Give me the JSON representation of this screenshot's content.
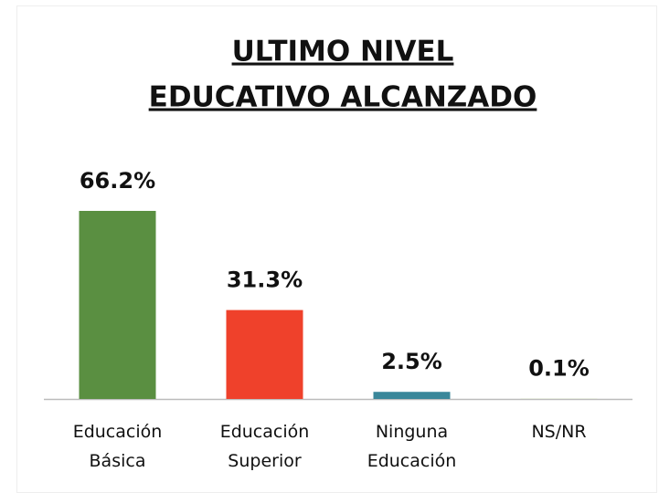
{
  "chart_data": {
    "type": "bar",
    "title": [
      "ULTIMO NIVEL",
      "EDUCATIVO ALCANZADO"
    ],
    "categories": [
      "Educación Básica",
      "Educación Superior",
      "Ninguna Educación",
      "NS/NR"
    ],
    "values": [
      66.2,
      31.3,
      2.5,
      0.1
    ],
    "value_labels": [
      "66.2%",
      "31.3%",
      "2.5%",
      "0.1%"
    ],
    "colors": [
      "#5a8f41",
      "#ef412b",
      "#3a879a",
      "#c9d8b4"
    ]
  }
}
